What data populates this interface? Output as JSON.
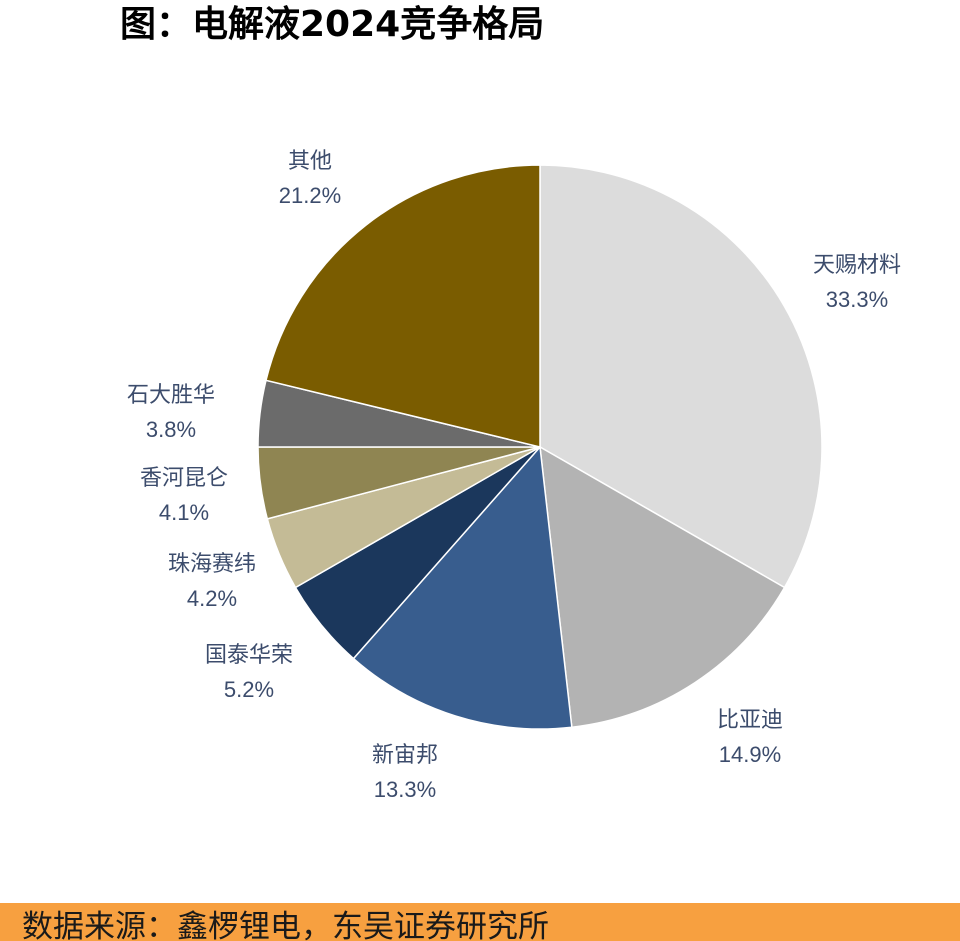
{
  "title": "图：电解液2024竞争格局",
  "footer": {
    "source": "数据来源：鑫椤锂电，东吴证券研究所"
  },
  "chart_data": {
    "type": "pie",
    "start_angle_deg": 0,
    "direction": "clockwise",
    "slices": [
      {
        "label": "天赐材料",
        "value": 33.3,
        "value_label": "33.3%",
        "color": "#dcdcdc"
      },
      {
        "label": "比亚迪",
        "value": 14.9,
        "value_label": "14.9%",
        "color": "#b3b3b3"
      },
      {
        "label": "新宙邦",
        "value": 13.3,
        "value_label": "13.3%",
        "color": "#385d8e"
      },
      {
        "label": "国泰华荣",
        "value": 5.2,
        "value_label": "5.2%",
        "color": "#1b375c"
      },
      {
        "label": "珠海赛纬",
        "value": 4.2,
        "value_label": "4.2%",
        "color": "#c4bb96"
      },
      {
        "label": "香河昆仑",
        "value": 4.1,
        "value_label": "4.1%",
        "color": "#8f8552"
      },
      {
        "label": "石大胜华",
        "value": 3.8,
        "value_label": "3.8%",
        "color": "#6b6b6b"
      },
      {
        "label": "其他",
        "value": 21.2,
        "value_label": "21.2%",
        "color": "#7a5c00"
      }
    ]
  }
}
